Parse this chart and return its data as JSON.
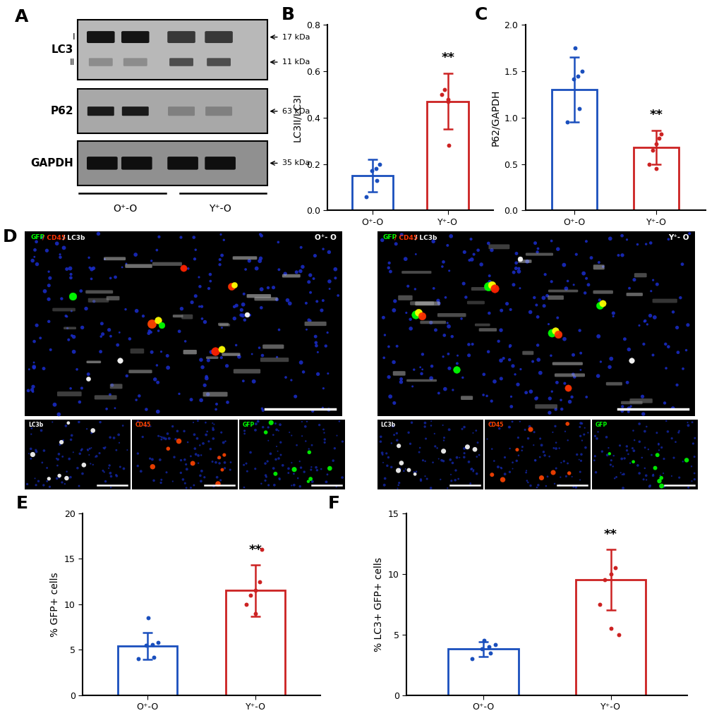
{
  "panel_B": {
    "title": "B",
    "ylabel": "LC3II/LC3I",
    "ylim": [
      0.0,
      0.8
    ],
    "yticks": [
      0.0,
      0.2,
      0.4,
      0.6,
      0.8
    ],
    "categories": [
      "O⁺-O",
      "Y⁺-O"
    ],
    "bar_means": [
      0.15,
      0.47
    ],
    "bar_errors": [
      0.07,
      0.12
    ],
    "bar_colors": [
      "#1a4fbd",
      "#cc2222"
    ],
    "dot_data": {
      "O": [
        0.06,
        0.13,
        0.17,
        0.18,
        0.2
      ],
      "Y": [
        0.28,
        0.47,
        0.5,
        0.52,
        0.48
      ]
    },
    "significance": "**",
    "sig_on_idx": 1
  },
  "panel_C": {
    "title": "C",
    "ylabel": "P62/GAPDH",
    "ylim": [
      0.0,
      2.0
    ],
    "yticks": [
      0.0,
      0.5,
      1.0,
      1.5,
      2.0
    ],
    "categories": [
      "O⁺-O",
      "Y⁺-O"
    ],
    "bar_means": [
      1.3,
      0.68
    ],
    "bar_errors": [
      0.35,
      0.18
    ],
    "bar_colors": [
      "#1a4fbd",
      "#cc2222"
    ],
    "dot_data": {
      "O": [
        0.95,
        1.1,
        1.42,
        1.45,
        1.5,
        1.75
      ],
      "Y": [
        0.45,
        0.5,
        0.65,
        0.72,
        0.78,
        0.82
      ]
    },
    "significance": "**",
    "sig_on_idx": 1
  },
  "panel_E": {
    "title": "E",
    "ylabel": "% GFP+ cells",
    "ylim": [
      0,
      20
    ],
    "yticks": [
      0,
      5,
      10,
      15,
      20
    ],
    "categories": [
      "O⁺-O",
      "Y⁺-O"
    ],
    "bar_means": [
      5.4,
      11.5
    ],
    "bar_errors": [
      1.5,
      2.8
    ],
    "bar_colors": [
      "#1a4fbd",
      "#cc2222"
    ],
    "dot_data": {
      "O": [
        4.0,
        4.2,
        5.5,
        5.6,
        5.8,
        8.5
      ],
      "Y": [
        9.0,
        10.0,
        11.0,
        11.5,
        12.5,
        16.0
      ]
    },
    "significance": "**",
    "sig_on_idx": 1
  },
  "panel_F": {
    "title": "F",
    "ylabel": "% LC3+ GFP+ cells",
    "ylim": [
      0,
      15
    ],
    "yticks": [
      0,
      5,
      10,
      15
    ],
    "categories": [
      "O⁺-O",
      "Y⁺-O"
    ],
    "bar_means": [
      3.8,
      9.5
    ],
    "bar_errors": [
      0.6,
      2.5
    ],
    "bar_colors": [
      "#1a4fbd",
      "#cc2222"
    ],
    "dot_data": {
      "O": [
        3.0,
        3.5,
        3.8,
        4.0,
        4.2,
        4.5
      ],
      "Y": [
        5.5,
        7.5,
        9.5,
        10.0,
        10.5,
        5.0
      ]
    },
    "significance": "**",
    "sig_on_idx": 1
  }
}
